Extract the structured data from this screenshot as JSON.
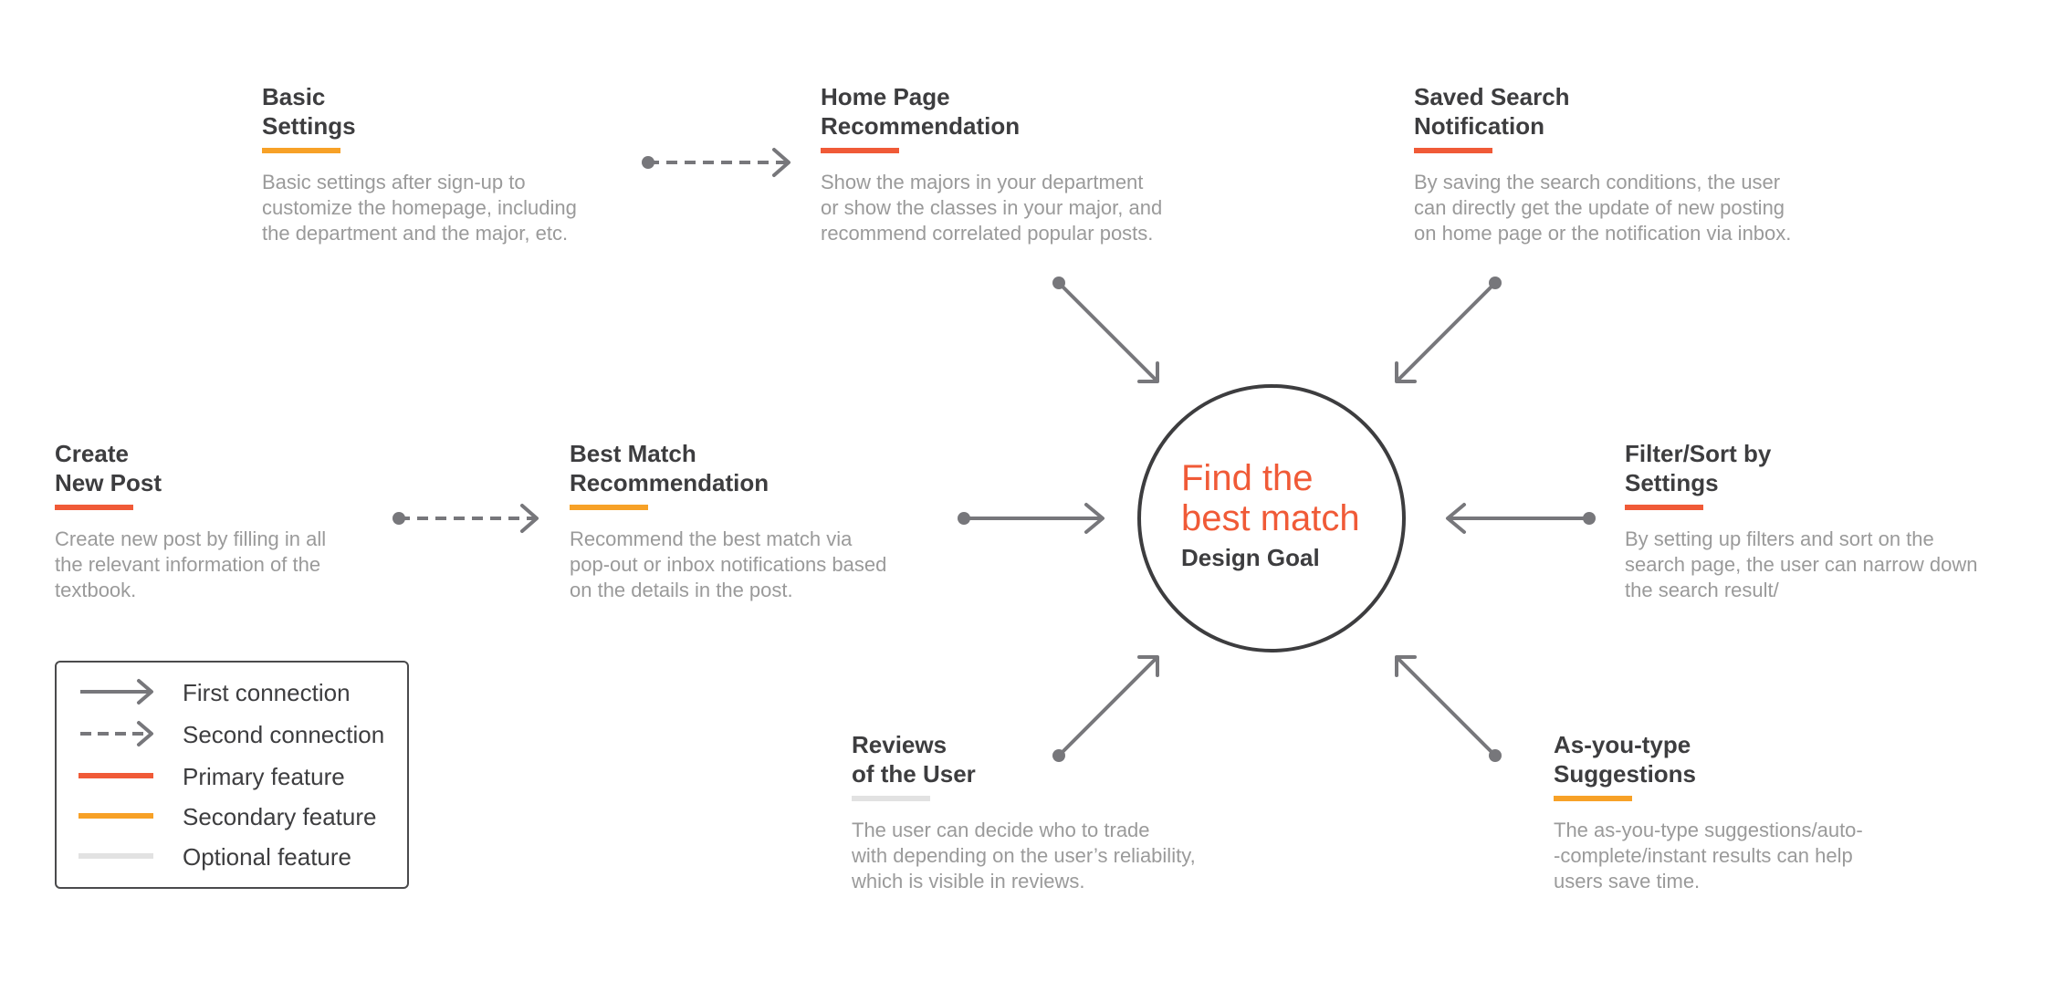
{
  "nodes": {
    "basic_settings": {
      "title": [
        "Basic",
        "Settings"
      ],
      "desc": [
        "Basic settings after sign-up to",
        "customize the homepage, including",
        "the department and the major, etc."
      ]
    },
    "home_page": {
      "title": [
        "Home Page",
        "Recommendation"
      ],
      "desc": [
        "Show the majors in your department",
        "or show the classes in your major, and",
        "recommend correlated popular posts."
      ]
    },
    "saved_search": {
      "title": [
        "Saved Search",
        "Notification"
      ],
      "desc": [
        "By saving the search conditions, the user",
        "can directly get the update of new posting",
        "on home page or the notification via inbox."
      ]
    },
    "create_post": {
      "title": [
        "Create",
        "New Post"
      ],
      "desc": [
        "Create new post by filling in all",
        "the relevant information of the",
        "textbook."
      ]
    },
    "best_match": {
      "title": [
        "Best Match",
        "Recommendation"
      ],
      "desc": [
        "Recommend the best match via",
        "pop-out or inbox notifications based",
        "on the details in the post."
      ]
    },
    "filter_sort": {
      "title": [
        "Filter/Sort by",
        "Settings"
      ],
      "desc": [
        "By setting up filters and sort on the",
        "search page, the user can narrow down",
        "the search result/"
      ]
    },
    "reviews": {
      "title": [
        "Reviews",
        "of the User"
      ],
      "desc": [
        "The user can decide who to trade",
        "with depending on the user’s reliability,",
        "which is visible in reviews."
      ]
    },
    "as_you_type": {
      "title": [
        "As-you-type",
        "Suggestions"
      ],
      "desc": [
        "The as-you-type suggestions/auto-",
        "-complete/instant results can help",
        "users save time."
      ]
    }
  },
  "goal": {
    "main": [
      "Find the",
      "best match"
    ],
    "sub": "Design Goal"
  },
  "legend": {
    "first_connection": "First connection",
    "second_connection": "Second connection",
    "primary_feature": "Primary feature",
    "secondary_feature": "Secondary feature",
    "optional_feature": "Optional feature"
  },
  "colors": {
    "primary": "#f05a37",
    "secondary": "#f7a127",
    "optional": "#e2e2e2",
    "connector": "#77777b",
    "text_dark": "#3d3d3f",
    "text_muted": "#9a9a9a"
  }
}
